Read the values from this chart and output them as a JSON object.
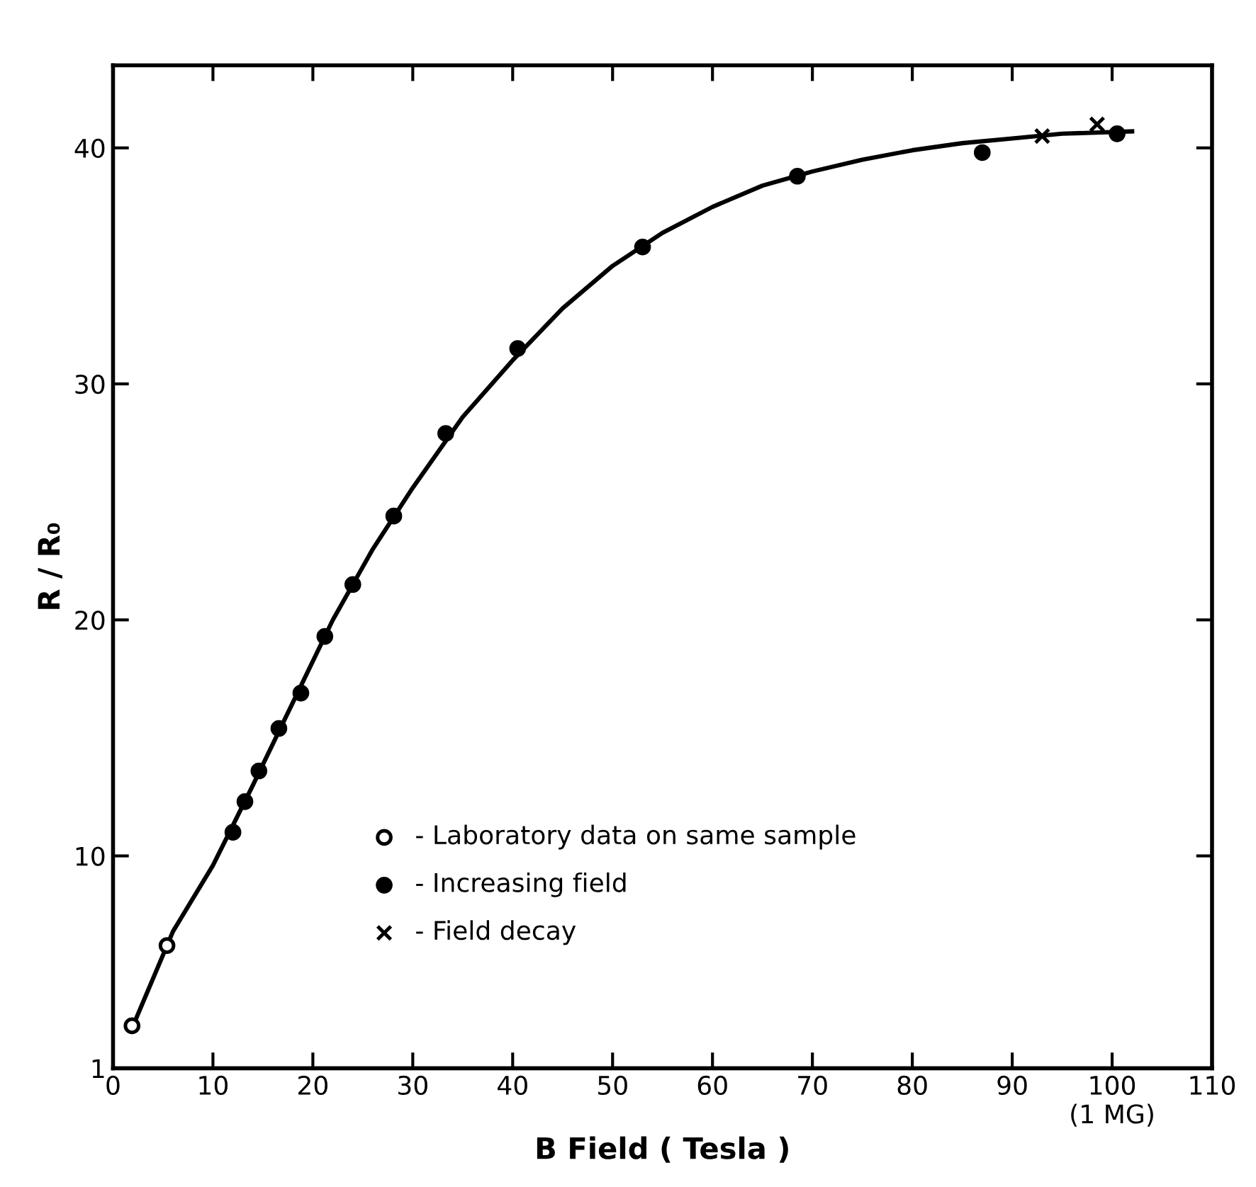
{
  "chart_data": {
    "type": "scatter",
    "xlabel": "B Field ( Tesla )",
    "ylabel": "R / R₀",
    "xlim": [
      0,
      110
    ],
    "xticks": [
      0,
      10,
      20,
      30,
      40,
      50,
      60,
      70,
      80,
      90,
      {
        "value": 100,
        "label": "100\n(1 MG)"
      },
      110
    ],
    "ylim": [
      1,
      43.5
    ],
    "yticks": [
      1,
      10,
      20,
      30,
      40
    ],
    "grid": false,
    "legend": "bottom",
    "series": [
      {
        "name": "- Laboratory data on same sample",
        "color": "#000000",
        "marker": "open circle",
        "x": [
          1.9,
          5.4
        ],
        "values": [
          2.8,
          6.2
        ]
      },
      {
        "name": "- Increasing field",
        "color": "#000000",
        "marker": "circle",
        "x": [
          12.0,
          13.2,
          14.6,
          16.6,
          18.8,
          21.2,
          24.0,
          28.1,
          33.3,
          40.5,
          53.0,
          68.5,
          87.0,
          100.5
        ],
        "values": [
          11.0,
          12.3,
          13.6,
          15.4,
          16.9,
          19.3,
          21.5,
          24.4,
          27.9,
          31.5,
          35.8,
          38.8,
          39.8,
          40.6
        ]
      },
      {
        "name": "- Field decay",
        "color": "#000000",
        "marker": "cross",
        "x": [
          93.0,
          98.5
        ],
        "values": [
          40.5,
          41.0
        ]
      },
      {
        "type": "line",
        "color": "#000000",
        "line_style": "solid",
        "marker": "none",
        "x": [
          2,
          6,
          10,
          14,
          18,
          22,
          26,
          30,
          35,
          40,
          45,
          50,
          55,
          60,
          65,
          70,
          75,
          80,
          85,
          90,
          95,
          102
        ],
        "values": [
          2.8,
          6.8,
          9.6,
          13.0,
          16.5,
          20.0,
          23.0,
          25.6,
          28.6,
          31.0,
          33.2,
          35.0,
          36.4,
          37.5,
          38.4,
          39.0,
          39.5,
          39.9,
          40.2,
          40.4,
          40.6,
          40.7
        ]
      }
    ]
  }
}
